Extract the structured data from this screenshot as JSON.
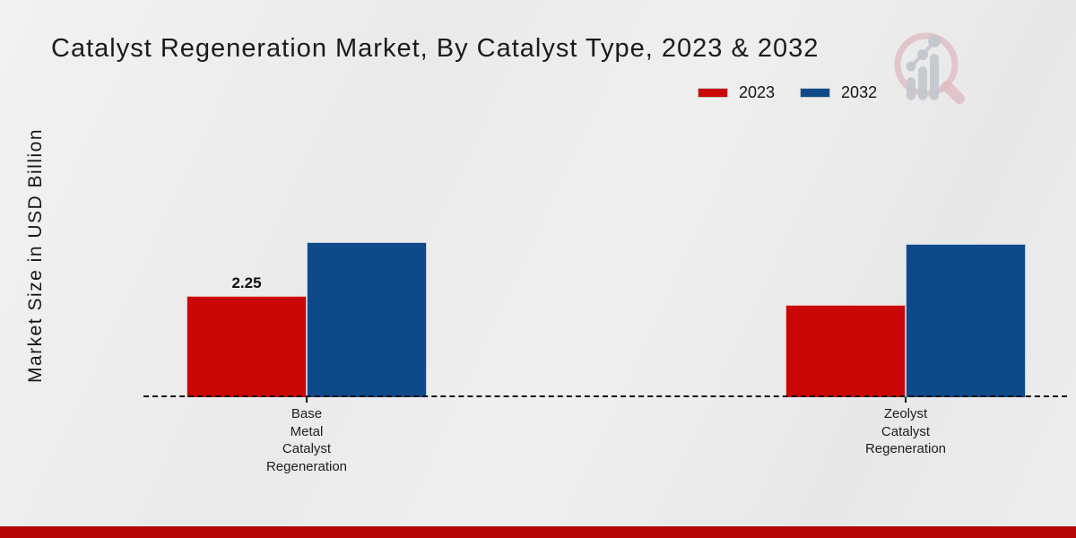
{
  "title": "Catalyst Regeneration Market, By Catalyst Type, 2023 & 2032",
  "ylabel": "Market Size in USD Billion",
  "watermark_icon": "magnifier-bar-chart-logo",
  "colors": {
    "bar_2023": "#c90707",
    "bar_2032": "#0e4a8a",
    "bottom_strip": "#b50606",
    "background": "#ececec",
    "watermark_pink": "#dfbcc2",
    "watermark_gray": "#c3c6cc"
  },
  "chart_data": {
    "type": "bar",
    "title": "Catalyst Regeneration Market, By Catalyst Type, 2023 & 2032",
    "xlabel": "",
    "ylabel": "Market Size in USD Billion",
    "categories": [
      "Base Metal Catalyst Regeneration",
      "Zeolyst Catalyst Regeneration"
    ],
    "categories_lines": [
      [
        "Base",
        "Metal",
        "Catalyst",
        "Regeneration"
      ],
      [
        "Zeolyst",
        "Catalyst",
        "Regeneration"
      ]
    ],
    "series": [
      {
        "name": "2023",
        "color": "#c90707",
        "values": [
          2.25,
          2.05
        ],
        "labels": [
          "2.25",
          ""
        ]
      },
      {
        "name": "2032",
        "color": "#0e4a8a",
        "values": [
          3.45,
          3.4
        ],
        "labels": [
          "",
          ""
        ]
      }
    ],
    "ylim": [
      0,
      4.4
    ],
    "grid": false,
    "baseline": "dashed zero line",
    "legend_position": "top-right",
    "shown_data_label": "2.25"
  }
}
